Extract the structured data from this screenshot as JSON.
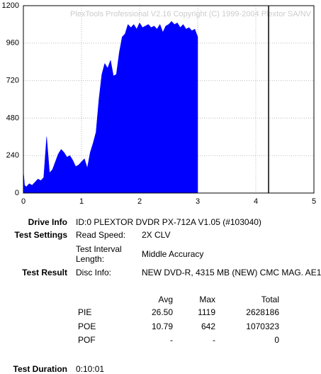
{
  "chart_data": {
    "type": "area",
    "watermark": "PlexTools Professional V2.16 Copyright (C) 1999-2004 Plextor SA/NV",
    "x": [
      0,
      0.02,
      0.05,
      0.1,
      0.15,
      0.2,
      0.25,
      0.3,
      0.35,
      0.4,
      0.45,
      0.5,
      0.55,
      0.6,
      0.65,
      0.7,
      0.75,
      0.8,
      0.85,
      0.9,
      0.95,
      1.0,
      1.05,
      1.1,
      1.15,
      1.2,
      1.25,
      1.3,
      1.35,
      1.4,
      1.45,
      1.5,
      1.55,
      1.6,
      1.65,
      1.7,
      1.75,
      1.8,
      1.85,
      1.9,
      1.95,
      2.0,
      2.05,
      2.1,
      2.15,
      2.2,
      2.25,
      2.3,
      2.35,
      2.4,
      2.45,
      2.5,
      2.55,
      2.6,
      2.65,
      2.7,
      2.75,
      2.8,
      2.85,
      2.9,
      2.95,
      3.0
    ],
    "values": [
      140,
      50,
      40,
      60,
      50,
      70,
      90,
      80,
      100,
      360,
      130,
      150,
      200,
      250,
      280,
      260,
      230,
      240,
      210,
      170,
      180,
      200,
      220,
      160,
      260,
      320,
      390,
      600,
      760,
      830,
      800,
      850,
      750,
      760,
      900,
      1000,
      1020,
      1080,
      1060,
      1080,
      1050,
      1090,
      1060,
      1070,
      1080,
      1060,
      1070,
      1050,
      1080,
      1030,
      1070,
      1080,
      1100,
      1080,
      1090,
      1060,
      1080,
      1050,
      1060,
      1040,
      1050,
      1000
    ],
    "color": "#0000ff",
    "marker_x": 4.22,
    "marker_color": "#000000",
    "xlim": [
      0,
      5
    ],
    "xticks": [
      0,
      1,
      2,
      3,
      4,
      5
    ],
    "ylim": [
      0,
      1200
    ],
    "yticks": [
      0,
      240,
      480,
      720,
      960,
      1200
    ],
    "grid": true
  },
  "info": {
    "drive_info_label": "Drive Info",
    "drive_info": "ID:0 PLEXTOR DVDR PX-712A V1.05 (#103040)",
    "test_settings_label": "Test Settings",
    "read_speed_label": "Read Speed:",
    "read_speed": "2X CLV",
    "interval_label": "Test Interval Length:",
    "interval": "Middle Accuracy",
    "test_result_label": "Test Result",
    "disc_info_label": "Disc Info:",
    "disc_info": "NEW DVD-R, 4315 MB (NEW) CMC MAG. AE1",
    "columns": [
      "Avg",
      "Max",
      "Total"
    ],
    "rows": [
      [
        "PIE",
        "26.50",
        "1119",
        "2628186"
      ],
      [
        "POE",
        "10.79",
        "642",
        "1070323"
      ],
      [
        "POF",
        "-",
        "-",
        "0"
      ]
    ],
    "duration_label": "Test Duration",
    "duration": "0:10:01"
  }
}
